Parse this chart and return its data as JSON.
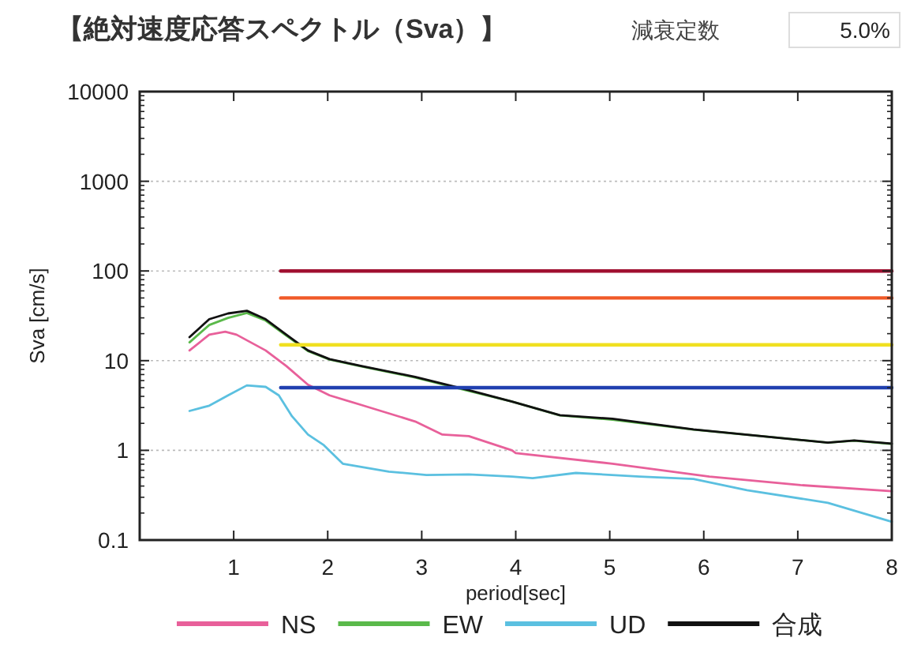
{
  "chart_data": {
    "type": "line",
    "title": "【絶対速度応答スペクトル（Sva）】",
    "annotations": [
      "減衰定数",
      "5.0%"
    ],
    "xlabel": "period[sec]",
    "ylabel": "Sva [cm/s]",
    "xlim": [
      0,
      8
    ],
    "xticks": [
      1,
      2,
      3,
      4,
      5,
      6,
      7,
      8
    ],
    "ylim": [
      0.1,
      10000
    ],
    "yticks": [
      0.1,
      1,
      10,
      100,
      1000,
      10000
    ],
    "log": "y",
    "grid": "y",
    "legend": "bottom",
    "line_style": "solid",
    "marker": "none",
    "series": [
      {
        "name": "NS",
        "color": "#e8609a",
        "x": [
          0.53,
          0.74,
          0.91,
          1.03,
          1.34,
          1.56,
          1.79,
          2.02,
          2.36,
          2.93,
          3.22,
          3.5,
          3.96,
          4.0,
          5.03,
          6.06,
          7.03,
          8
        ],
        "values": [
          13,
          19.5,
          21,
          19.5,
          13,
          8.7,
          5.4,
          4.1,
          3.2,
          2.1,
          1.5,
          1.44,
          1.0,
          0.93,
          0.71,
          0.51,
          0.41,
          0.35
        ]
      },
      {
        "name": "EW",
        "color": "#5ab94a",
        "x": [
          0.53,
          0.74,
          0.94,
          1.14,
          1.34,
          1.56,
          1.79,
          2.02,
          2.36,
          2.93,
          3.5,
          3.96,
          4.47,
          5.03,
          5.89,
          6.74,
          7.32,
          7.6,
          8
        ],
        "values": [
          16,
          25,
          30,
          34,
          28,
          19,
          12.8,
          10.3,
          8.6,
          6.5,
          4.6,
          3.5,
          2.45,
          2.2,
          1.7,
          1.4,
          1.22,
          1.28,
          1.18
        ]
      },
      {
        "name": "UD",
        "color": "#5bc0e0",
        "x": [
          0.53,
          0.74,
          0.94,
          1.14,
          1.34,
          1.48,
          1.62,
          1.79,
          1.96,
          2.16,
          2.65,
          3.05,
          3.5,
          3.96,
          4.18,
          4.64,
          5.32,
          5.89,
          6.46,
          7.32,
          8
        ],
        "values": [
          2.75,
          3.15,
          4.1,
          5.3,
          5.1,
          4.1,
          2.4,
          1.5,
          1.14,
          0.71,
          0.58,
          0.53,
          0.54,
          0.51,
          0.49,
          0.56,
          0.51,
          0.48,
          0.36,
          0.26,
          0.16
        ]
      },
      {
        "name": "合成",
        "color": "#111111",
        "x": [
          0.53,
          0.74,
          0.94,
          1.14,
          1.34,
          1.56,
          1.79,
          2.02,
          2.36,
          2.93,
          3.5,
          3.96,
          4.47,
          5.03,
          5.89,
          6.74,
          7.32,
          7.6,
          8
        ],
        "values": [
          18.3,
          29,
          33.6,
          36,
          29,
          19.5,
          13,
          10.4,
          8.7,
          6.6,
          4.7,
          3.5,
          2.47,
          2.25,
          1.71,
          1.4,
          1.22,
          1.29,
          1.19
        ]
      },
      {
        "color": "#a01030",
        "x": [
          1.5,
          8
        ],
        "values": [
          100,
          100
        ]
      },
      {
        "color": "#f05a28",
        "x": [
          1.5,
          8
        ],
        "values": [
          50,
          50
        ]
      },
      {
        "color": "#f0e020",
        "x": [
          1.5,
          8
        ],
        "values": [
          15,
          15
        ]
      },
      {
        "color": "#2040b0",
        "x": [
          1.5,
          8
        ],
        "values": [
          5,
          5
        ]
      }
    ]
  }
}
